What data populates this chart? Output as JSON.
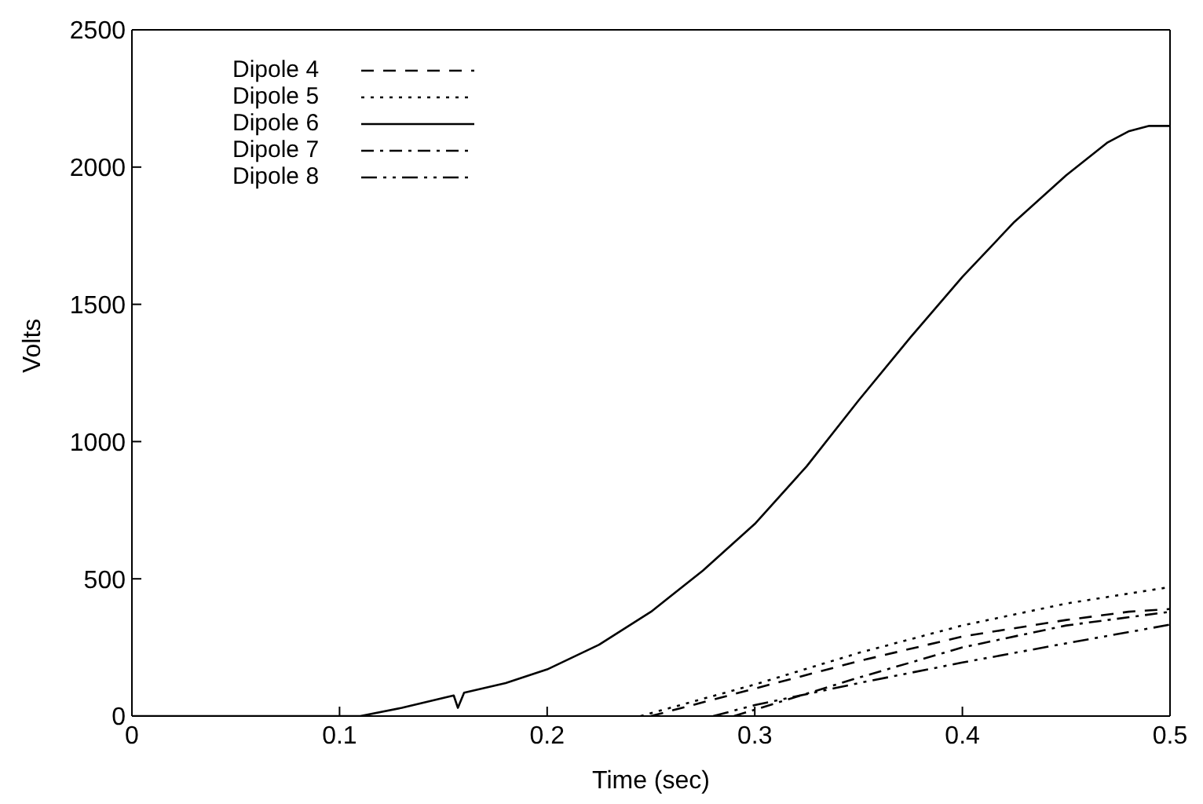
{
  "chart_data": {
    "type": "line",
    "xlabel": "Time (sec)",
    "ylabel": "Volts",
    "xlim": [
      0,
      0.5
    ],
    "ylim": [
      0,
      2500
    ],
    "xticks": [
      0,
      0.1,
      0.2,
      0.3,
      0.4,
      0.5
    ],
    "yticks": [
      0,
      500,
      1000,
      1500,
      2000,
      2500
    ],
    "legend": "top left",
    "marker": "none",
    "series": [
      {
        "name": "Dipole 4",
        "color": "#000000",
        "line_style": "dashed",
        "x": [
          0.25,
          0.3,
          0.35,
          0.4,
          0.45,
          0.48,
          0.5
        ],
        "values": [
          0,
          100,
          200,
          290,
          350,
          380,
          390
        ]
      },
      {
        "name": "Dipole 5",
        "color": "#000000",
        "line_style": "dotted",
        "x": [
          0.245,
          0.3,
          0.35,
          0.4,
          0.45,
          0.5
        ],
        "values": [
          0,
          115,
          230,
          330,
          410,
          470
        ]
      },
      {
        "name": "Dipole 6",
        "color": "#000000",
        "line_style": "solid",
        "x": [
          0,
          0.11,
          0.13,
          0.155,
          0.157,
          0.16,
          0.18,
          0.2,
          0.225,
          0.25,
          0.275,
          0.3,
          0.325,
          0.35,
          0.375,
          0.4,
          0.425,
          0.45,
          0.47,
          0.48,
          0.49,
          0.5
        ],
        "values": [
          0,
          0,
          30,
          75,
          30,
          85,
          120,
          170,
          260,
          380,
          530,
          700,
          910,
          1150,
          1380,
          1600,
          1800,
          1970,
          2090,
          2130,
          2150,
          2150
        ]
      },
      {
        "name": "Dipole 7",
        "color": "#000000",
        "line_style": "dashdot",
        "x": [
          0.29,
          0.32,
          0.35,
          0.4,
          0.45,
          0.5
        ],
        "values": [
          0,
          70,
          140,
          250,
          330,
          380
        ]
      },
      {
        "name": "Dipole 8",
        "color": "#000000",
        "line_style": "dashdotdot",
        "x": [
          0.28,
          0.3,
          0.35,
          0.4,
          0.45,
          0.5
        ],
        "values": [
          0,
          40,
          120,
          195,
          265,
          333
        ]
      }
    ]
  }
}
